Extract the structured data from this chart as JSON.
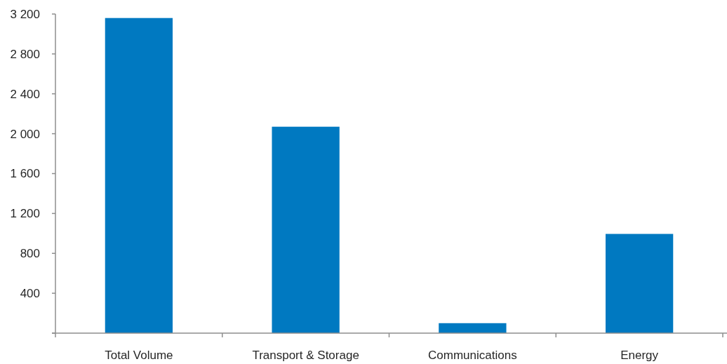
{
  "chart_data": {
    "type": "bar",
    "categories": [
      "Total Volume",
      "Transport & Storage",
      "Communications",
      "Energy"
    ],
    "values": [
      3160,
      2070,
      100,
      995
    ],
    "color": "#0079c1",
    "ylim": [
      0,
      3200
    ],
    "yticks": [
      {
        "value": 0,
        "label": null
      },
      400,
      800,
      {
        "value": 1200,
        "label": "1 200"
      },
      {
        "value": 1600,
        "label": "1 600"
      },
      {
        "value": 2000,
        "label": "2 000"
      },
      {
        "value": 2400,
        "label": "2 400"
      },
      {
        "value": 2800,
        "label": "2 800"
      },
      {
        "value": 3200,
        "label": "3 200"
      }
    ],
    "grid": false
  }
}
